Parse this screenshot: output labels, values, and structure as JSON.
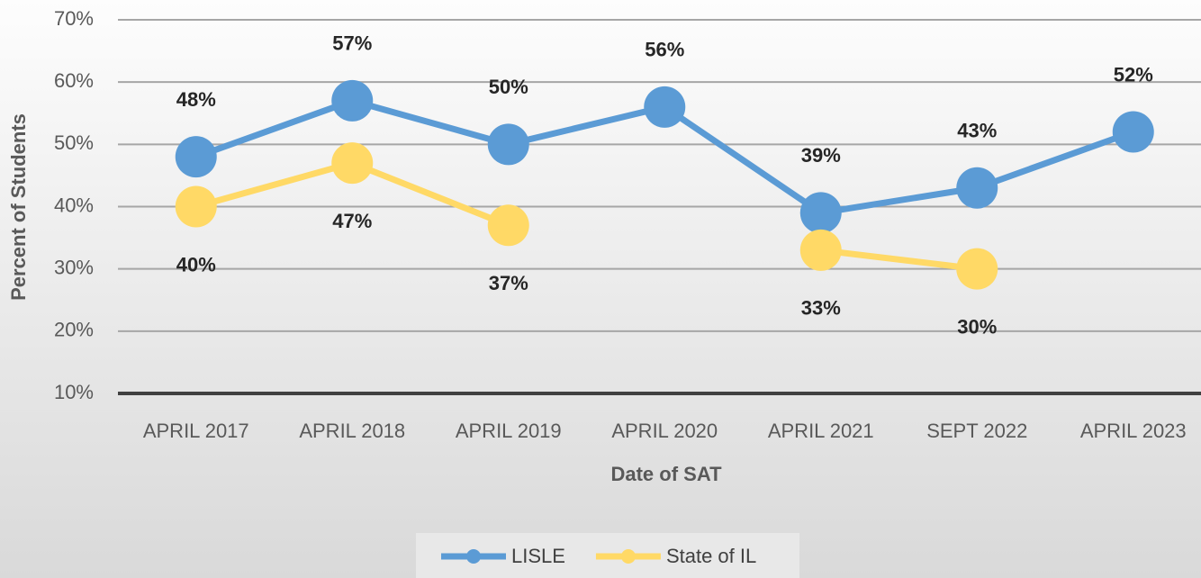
{
  "chart_data": {
    "type": "line",
    "x_label": "Date of SAT",
    "y_label": "Percent of Students",
    "categories": [
      "APRIL 2017",
      "APRIL 2018",
      "APRIL 2019",
      "APRIL 2020",
      "APRIL 2021",
      "SEPT 2022",
      "APRIL 2023"
    ],
    "series": [
      {
        "name": "LISLE",
        "color": "#5b9bd5",
        "values": [
          48,
          57,
          50,
          56,
          39,
          43,
          52
        ],
        "value_labels": [
          "48%",
          "57%",
          "50%",
          "56%",
          "39%",
          "43%",
          "52%"
        ]
      },
      {
        "name": "State of IL",
        "color": "#ffd966",
        "values": [
          40,
          47,
          37,
          null,
          33,
          30,
          null
        ],
        "value_labels": [
          "40%",
          "47%",
          "37%",
          null,
          "33%",
          "30%",
          null
        ]
      }
    ],
    "ylim": [
      10,
      70
    ],
    "yticks": [
      {
        "value": 10,
        "label": "10%"
      },
      {
        "value": 20,
        "label": "20%"
      },
      {
        "value": 30,
        "label": "30%"
      },
      {
        "value": 40,
        "label": "40%"
      },
      {
        "value": 50,
        "label": "50%"
      },
      {
        "value": 60,
        "label": "60%"
      },
      {
        "value": 70,
        "label": "70%"
      }
    ],
    "grid": true,
    "legend": "bottom"
  }
}
